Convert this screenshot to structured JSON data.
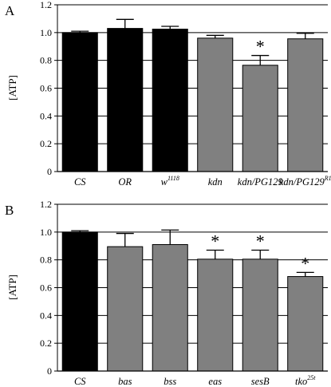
{
  "chart_data": [
    {
      "type": "bar",
      "panel_label": "A",
      "ylabel": "[ATP]",
      "ylim": [
        0,
        1.2
      ],
      "yticks": [
        "0",
        "0.2",
        "0.4",
        "0.6",
        "0.8",
        "1.0",
        "1.2"
      ],
      "grid": true,
      "categories": [
        {
          "label": "CS",
          "sup": ""
        },
        {
          "label": "OR",
          "sup": ""
        },
        {
          "label": "w",
          "sup": "1118"
        },
        {
          "label": "kdn",
          "sup": ""
        },
        {
          "label": "kdn/PG129",
          "sup": ""
        },
        {
          "label": "kdn/PG129",
          "sup": "R1"
        }
      ],
      "values": [
        1.0,
        1.03,
        1.025,
        0.96,
        0.765,
        0.955
      ],
      "errors": [
        0.01,
        0.065,
        0.02,
        0.02,
        0.07,
        0.04
      ],
      "bar_colors": [
        "#000000",
        "#000000",
        "#000000",
        "#808080",
        "#808080",
        "#808080"
      ],
      "annotations": [
        "",
        "",
        "",
        "",
        "*",
        ""
      ]
    },
    {
      "type": "bar",
      "panel_label": "B",
      "ylabel": "[ATP]",
      "ylim": [
        0,
        1.2
      ],
      "yticks": [
        "0",
        "0.2",
        "0.4",
        "0.6",
        "0.8",
        "1.0",
        "1.2"
      ],
      "grid": true,
      "categories": [
        {
          "label": "CS",
          "sup": ""
        },
        {
          "label": "bas",
          "sup": ""
        },
        {
          "label": "bss",
          "sup": ""
        },
        {
          "label": "eas",
          "sup": ""
        },
        {
          "label": "sesB",
          "sup": ""
        },
        {
          "label": "tko",
          "sup": "25t"
        }
      ],
      "values": [
        1.0,
        0.895,
        0.91,
        0.805,
        0.805,
        0.68
      ],
      "errors": [
        0.01,
        0.095,
        0.105,
        0.065,
        0.065,
        0.03
      ],
      "bar_colors": [
        "#000000",
        "#808080",
        "#808080",
        "#808080",
        "#808080",
        "#808080"
      ],
      "annotations": [
        "",
        "",
        "",
        "*",
        "*",
        "*"
      ]
    }
  ]
}
